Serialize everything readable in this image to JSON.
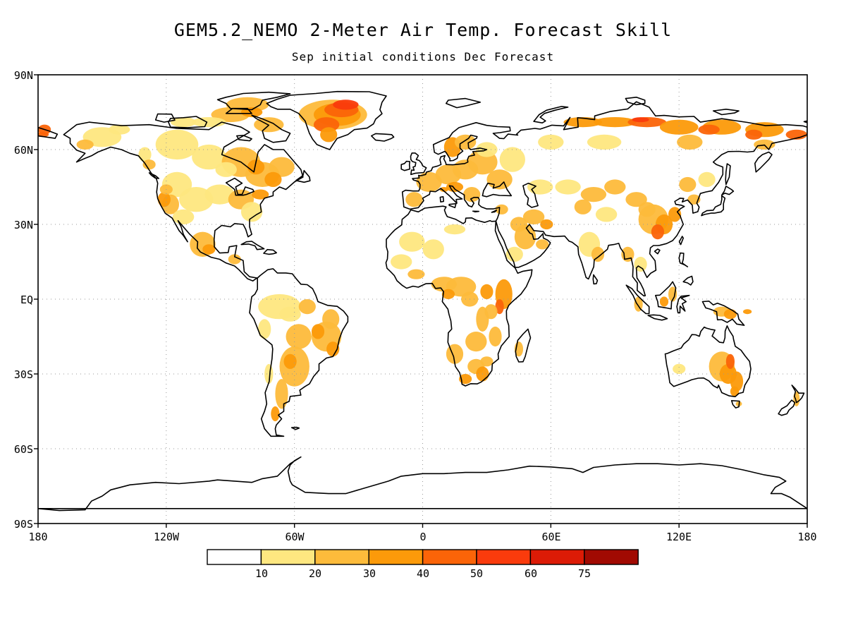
{
  "title": "GEM5.2_NEMO 2-Meter Air Temp. Forecast Skill",
  "subtitle": "Sep initial conditions  Dec Forecast",
  "map": {
    "lat_labels": [
      "90N",
      "60N",
      "30N",
      "EQ",
      "30S",
      "60S",
      "90S"
    ],
    "lon_labels": [
      "180",
      "120W",
      "60W",
      "0",
      "60E",
      "120E",
      "180"
    ],
    "gridlines": "dotted",
    "land_outline_color": "#000000"
  },
  "colorbar": {
    "colors": [
      "#ffffff",
      "#fee780",
      "#fdbb3b",
      "#fc9a0a",
      "#fb6408",
      "#fa3b0c",
      "#dc1b06",
      "#a10a02"
    ],
    "labels": [
      "10",
      "20",
      "30",
      "40",
      "50",
      "60",
      "75"
    ]
  },
  "skill_patches": [
    {
      "region": "Greenland",
      "level": 4
    },
    {
      "region": "Northern Siberia",
      "level": 5
    },
    {
      "region": "Canada",
      "level": 2
    },
    {
      "region": "Alaska",
      "level": 2
    },
    {
      "region": "Eastern North America",
      "level": 1
    },
    {
      "region": "Europe",
      "level": 2
    },
    {
      "region": "Central Asia",
      "level": 2
    },
    {
      "region": "China",
      "level": 3
    },
    {
      "region": "Arabia",
      "level": 2
    },
    {
      "region": "Central Africa",
      "level": 2
    },
    {
      "region": "East Africa",
      "level": 3
    },
    {
      "region": "Southern Africa",
      "level": 3
    },
    {
      "region": "Brazil",
      "level": 2
    },
    {
      "region": "Southern South America",
      "level": 2
    },
    {
      "region": "Australia",
      "level": 3
    },
    {
      "region": "New Guinea",
      "level": 3
    },
    {
      "region": "Mexico",
      "level": 2
    },
    {
      "region": "Sahara",
      "level": 1
    }
  ]
}
